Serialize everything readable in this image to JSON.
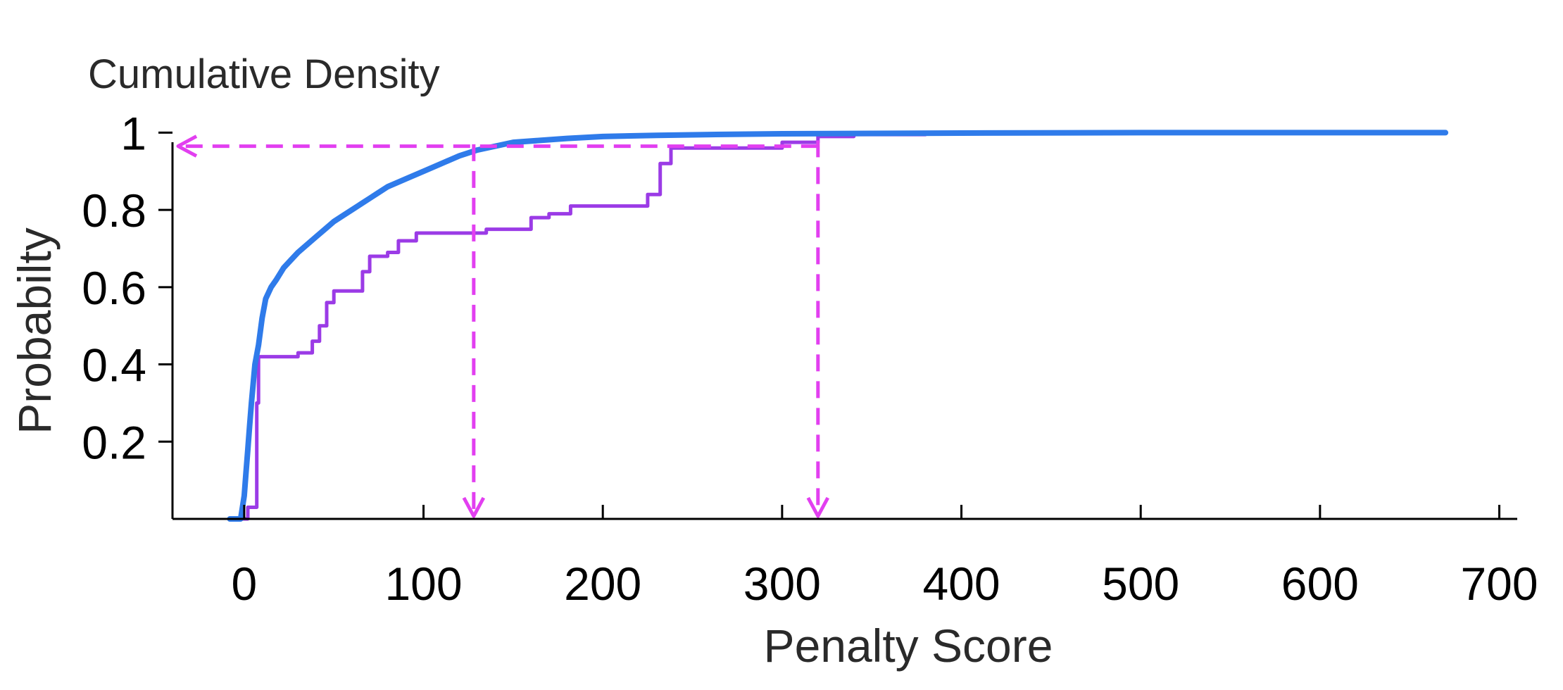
{
  "chart_data": {
    "type": "line",
    "title": "Cumulative Density",
    "xlabel": "Penalty Score",
    "ylabel": "Probabilty",
    "xlim": [
      -40,
      710
    ],
    "ylim": [
      0,
      1.07
    ],
    "xticks": [
      0,
      100,
      200,
      300,
      400,
      500,
      600,
      700
    ],
    "xtick_labels": [
      "0",
      "100",
      "200",
      "300",
      "400",
      "500",
      "600",
      "700"
    ],
    "yticks": [
      0.2,
      0.4,
      0.6,
      0.8,
      1
    ],
    "ytick_labels": [
      "0.2",
      "0.4",
      "0.6",
      "0.8",
      "1"
    ],
    "grid": false,
    "legend": "none",
    "series": [
      {
        "color": "#2f7bea",
        "x": [
          -8,
          -2,
          0,
          1,
          2,
          3,
          4,
          5,
          6,
          8,
          10,
          12,
          15,
          18,
          22,
          26,
          30,
          35,
          40,
          45,
          50,
          55,
          60,
          65,
          70,
          75,
          80,
          90,
          100,
          110,
          120,
          130,
          140,
          150,
          165,
          180,
          200,
          230,
          260,
          300,
          350,
          400,
          500,
          600,
          670
        ],
        "y": [
          0.0,
          0.0,
          0.06,
          0.12,
          0.18,
          0.24,
          0.3,
          0.35,
          0.4,
          0.45,
          0.52,
          0.57,
          0.6,
          0.62,
          0.65,
          0.67,
          0.69,
          0.71,
          0.73,
          0.75,
          0.77,
          0.785,
          0.8,
          0.815,
          0.83,
          0.845,
          0.86,
          0.88,
          0.9,
          0.92,
          0.94,
          0.955,
          0.965,
          0.975,
          0.98,
          0.985,
          0.99,
          0.993,
          0.995,
          0.997,
          0.998,
          0.999,
          1.0,
          1.0,
          1.0
        ]
      },
      {
        "color": "#9b3be6",
        "x": [
          -8,
          2,
          2,
          7,
          7,
          8,
          8,
          10,
          10,
          30,
          30,
          38,
          38,
          42,
          42,
          46,
          46,
          50,
          50,
          66,
          66,
          70,
          70,
          80,
          80,
          86,
          86,
          96,
          96,
          135,
          135,
          160,
          160,
          170,
          170,
          182,
          182,
          225,
          225,
          232,
          232,
          238,
          238,
          300,
          300,
          320,
          320,
          340,
          340,
          380,
          380,
          495
        ],
        "y": [
          0.0,
          0.0,
          0.03,
          0.03,
          0.3,
          0.3,
          0.42,
          0.42,
          0.42,
          0.42,
          0.43,
          0.43,
          0.46,
          0.46,
          0.5,
          0.5,
          0.56,
          0.56,
          0.59,
          0.59,
          0.64,
          0.64,
          0.68,
          0.68,
          0.69,
          0.69,
          0.72,
          0.72,
          0.74,
          0.74,
          0.75,
          0.75,
          0.78,
          0.78,
          0.79,
          0.79,
          0.81,
          0.81,
          0.84,
          0.84,
          0.92,
          0.92,
          0.96,
          0.96,
          0.975,
          0.975,
          0.99,
          0.99,
          0.995,
          0.995,
          1.0,
          1.0
        ]
      }
    ],
    "annotations": [
      {
        "type": "dashed-arrow",
        "color": "#e23ff0",
        "direction": "down",
        "x": 128,
        "y_from": 0.97,
        "y_to": 0.0
      },
      {
        "type": "dashed-arrow",
        "color": "#e23ff0",
        "direction": "down",
        "x": 320,
        "y_from": 0.98,
        "y_to": 0.0
      },
      {
        "type": "dashed-arrow",
        "color": "#e23ff0",
        "direction": "left",
        "y": 0.965,
        "x_from": 320,
        "x_to": -40
      }
    ]
  }
}
